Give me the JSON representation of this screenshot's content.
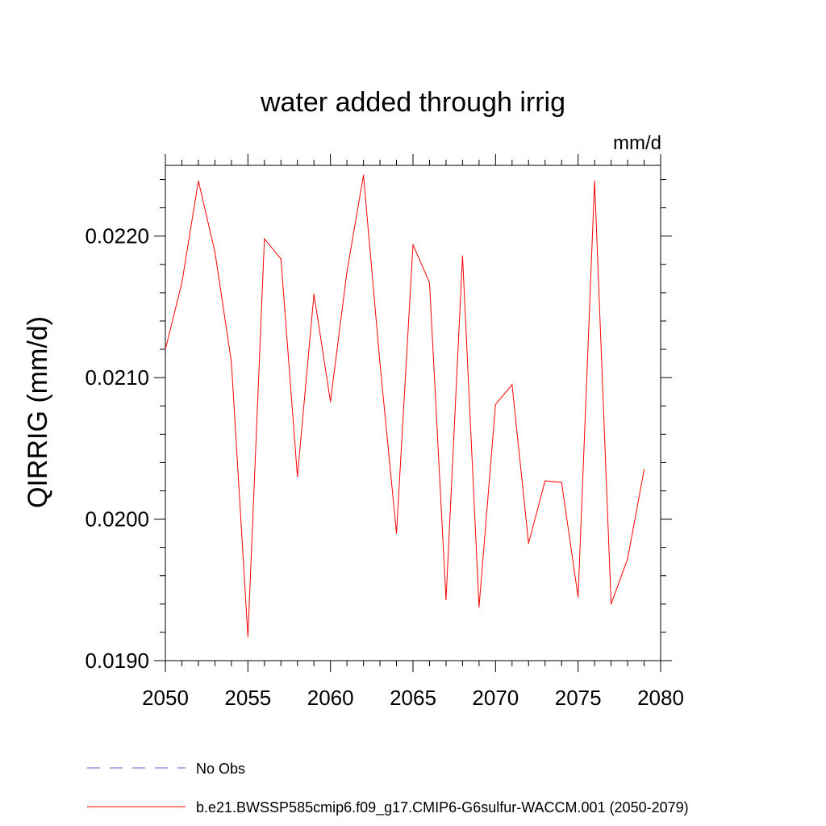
{
  "chart_data": {
    "type": "line",
    "title": "water added through irrig",
    "units": "mm/d",
    "xlabel": "",
    "ylabel": "QIRRIG  (mm/d)",
    "xlim": [
      2050,
      2080
    ],
    "ylim": [
      0.019,
      0.0225
    ],
    "x_ticks": [
      2050,
      2055,
      2060,
      2065,
      2070,
      2075,
      2080
    ],
    "x_tick_labels": [
      "2050",
      "2055",
      "2060",
      "2065",
      "2070",
      "2075",
      "2080"
    ],
    "y_ticks": [
      0.019,
      0.02,
      0.021,
      0.022
    ],
    "y_tick_labels": [
      "0.0190",
      "0.0200",
      "0.0210",
      "0.0220"
    ],
    "grid": false,
    "legend_position": "bottom",
    "series": [
      {
        "name": "No Obs",
        "color": "#6a5acd",
        "dash": "dashed",
        "x": [],
        "values": []
      },
      {
        "name": "b.e21.BWSSP585cmip6.f09_g17.CMIP6-G6sulfur-WACCM.001 (2050-2079)",
        "color": "#ff0000",
        "dash": "solid",
        "x": [
          2050,
          2051,
          2052,
          2053,
          2054,
          2055,
          2056,
          2057,
          2058,
          2059,
          2060,
          2061,
          2062,
          2063,
          2064,
          2065,
          2066,
          2067,
          2068,
          2069,
          2070,
          2071,
          2072,
          2073,
          2074,
          2075,
          2076,
          2077,
          2078,
          2079
        ],
        "values": [
          0.0212,
          0.02167,
          0.02239,
          0.02189,
          0.02111,
          0.01917,
          0.02198,
          0.02184,
          0.0203,
          0.02159,
          0.02083,
          0.02175,
          0.02243,
          0.0211,
          0.0199,
          0.02194,
          0.02167,
          0.01943,
          0.02186,
          0.01938,
          0.02081,
          0.02095,
          0.01983,
          0.02027,
          0.02026,
          0.01945,
          0.02239,
          0.0194,
          0.01972,
          0.02035
        ]
      }
    ]
  }
}
